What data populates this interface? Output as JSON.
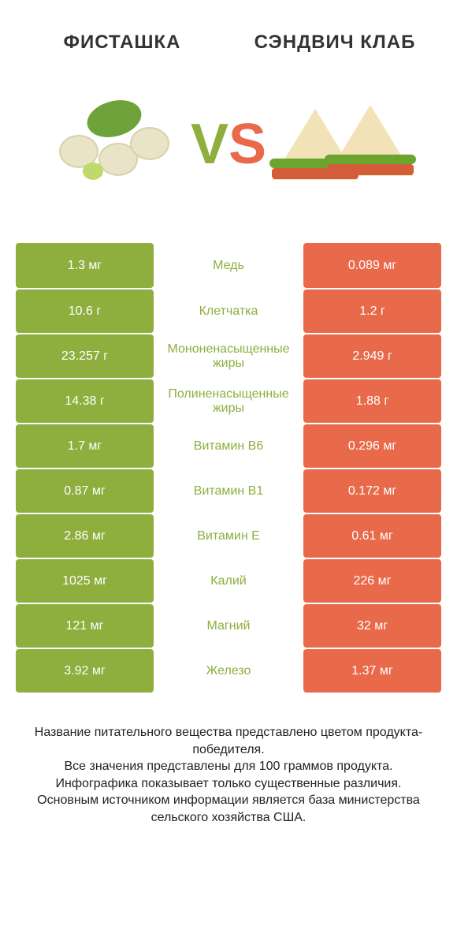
{
  "colors": {
    "left": "#8eae3e",
    "right": "#e86a4a",
    "left_label": "#8eae3e",
    "right_label": "#e86a4a"
  },
  "titles": {
    "left": "ФИСТАШКА",
    "right": "СЭНДВИЧ КЛАБ"
  },
  "vs": {
    "v": "V",
    "s": "S"
  },
  "rows": [
    {
      "left": "1.3 мг",
      "label": "Медь",
      "right": "0.089 мг",
      "winner": "left"
    },
    {
      "left": "10.6 г",
      "label": "Клетчатка",
      "right": "1.2 г",
      "winner": "left"
    },
    {
      "left": "23.257 г",
      "label": "Мононенасыщенные жиры",
      "right": "2.949 г",
      "winner": "left"
    },
    {
      "left": "14.38 г",
      "label": "Полиненасыщенные жиры",
      "right": "1.88 г",
      "winner": "left"
    },
    {
      "left": "1.7 мг",
      "label": "Витамин B6",
      "right": "0.296 мг",
      "winner": "left"
    },
    {
      "left": "0.87 мг",
      "label": "Витамин B1",
      "right": "0.172 мг",
      "winner": "left"
    },
    {
      "left": "2.86 мг",
      "label": "Витамин E",
      "right": "0.61 мг",
      "winner": "left"
    },
    {
      "left": "1025 мг",
      "label": "Калий",
      "right": "226 мг",
      "winner": "left"
    },
    {
      "left": "121 мг",
      "label": "Магний",
      "right": "32 мг",
      "winner": "left"
    },
    {
      "left": "3.92 мг",
      "label": "Железо",
      "right": "1.37 мг",
      "winner": "left"
    }
  ],
  "footer": {
    "line1": "Название питательного вещества представлено цветом продукта-победителя.",
    "line2": "Все значения представлены для 100 граммов продукта.",
    "line3": "Инфографика показывает только существенные различия.",
    "line4": "Основным источником информации является база министерства сельского хозяйства США."
  }
}
